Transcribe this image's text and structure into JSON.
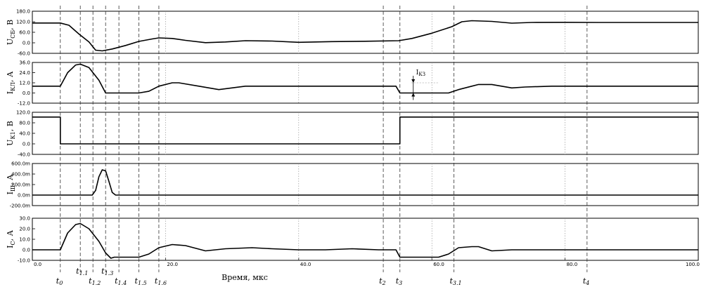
{
  "chart_data": {
    "type": "line",
    "xlabel": "Время, мкс",
    "xlim": [
      0,
      100
    ],
    "x_ticks": [
      {
        "v": 0,
        "label": "0.0"
      },
      {
        "v": 20,
        "label": "20.0"
      },
      {
        "v": 40,
        "label": "40.0"
      },
      {
        "v": 60,
        "label": "60.0"
      },
      {
        "v": 80,
        "label": "80.0"
      },
      {
        "v": 100,
        "label": "100.0"
      }
    ],
    "events": [
      {
        "x": 4.2,
        "base": "t",
        "sub": "0"
      },
      {
        "x": 7.2,
        "base": "t",
        "sub": "1.1"
      },
      {
        "x": 9.1,
        "base": "t",
        "sub": "1.2"
      },
      {
        "x": 11.0,
        "base": "t",
        "sub": "1.3"
      },
      {
        "x": 13.0,
        "base": "t",
        "sub": "1.4"
      },
      {
        "x": 16.0,
        "base": "t",
        "sub": "1.5"
      },
      {
        "x": 19.0,
        "base": "t",
        "sub": "1.6"
      },
      {
        "x": 52.7,
        "base": "t",
        "sub": "2"
      },
      {
        "x": 55.2,
        "base": "t",
        "sub": "3"
      },
      {
        "x": 63.3,
        "base": "t",
        "sub": "3.1"
      },
      {
        "x": 83.3,
        "base": "t",
        "sub": "4"
      }
    ],
    "panels": [
      {
        "ylabel_base": "U",
        "ylabel_sub": "СБ",
        "ylabel_unit": ", В",
        "ylim": [
          -60,
          180
        ],
        "y_ticks": [
          "180.0",
          "120.0",
          "60.0",
          "0.0",
          "-60.0"
        ],
        "y_tick_values": [
          180,
          120,
          60,
          0,
          -60
        ],
        "dashed_y": [],
        "series": [
          {
            "x": [
              0,
              4.2,
              5.5,
              7,
              8.5,
              9.5,
              10.5,
              12,
              14,
              16,
              18,
              19,
              21,
              23,
              26,
              29,
              32,
              36,
              40,
              45,
              50,
              55,
              57,
              60,
              63,
              64.5,
              66,
              69,
              72,
              75,
              80,
              85,
              90,
              100
            ],
            "y": [
              113,
              113,
              100,
              50,
              5,
              -42,
              -46,
              -35,
              -15,
              8,
              22,
              28,
              25,
              14,
              1,
              5,
              12,
              10,
              3,
              7,
              9,
              12,
              25,
              55,
              92,
              120,
              126,
              122,
              112,
              116,
              117,
              116,
              116,
              116
            ]
          }
        ]
      },
      {
        "ylabel_base": "I",
        "ylabel_sub": "КЛ",
        "ylabel_unit": ", А",
        "ylim": [
          -12,
          36
        ],
        "y_ticks": [
          "36.0",
          "24.0",
          "12.0",
          "0.0",
          "-12.0"
        ],
        "y_tick_values": [
          36,
          24,
          12,
          0,
          -12
        ],
        "dashed_y": [],
        "annotation": {
          "text": "I",
          "sub": "КЗ",
          "x": 57.2,
          "y_top": 12,
          "y_bottom": 0
        },
        "series": [
          {
            "x": [
              0,
              4.2,
              5.3,
              6.5,
              7.2,
              8.5,
              10,
              11,
              12.5,
              16,
              17.5,
              19,
              21,
              22,
              25,
              28,
              32,
              35,
              38,
              42,
              46,
              50,
              54.6,
              55.2,
              55.8,
              56.3,
              61,
              62.5,
              64,
              66,
              67,
              69,
              72,
              74,
              78,
              100
            ],
            "y": [
              8,
              8,
              24,
              33,
              34,
              30,
              15,
              0,
              0,
              0,
              2,
              8,
              12,
              12,
              8,
              4,
              8,
              8,
              8,
              8,
              8,
              8,
              8,
              0,
              0,
              0,
              0,
              0,
              4,
              8,
              10,
              10,
              6,
              7,
              8,
              8
            ]
          }
        ]
      },
      {
        "ylabel_base": "U",
        "ylabel_sub": "К1",
        "ylabel_unit": ", В",
        "ylim": [
          -40,
          120
        ],
        "y_ticks": [
          "120.0",
          "80.0",
          "40.0",
          "0.0",
          "-40.0"
        ],
        "y_tick_values": [
          120,
          80,
          40,
          0,
          -40
        ],
        "dashed_y": [],
        "series": [
          {
            "x": [
              0,
              4.2,
              4.2,
              55.2,
              55.2,
              100
            ],
            "y": [
              102,
              102,
              0,
              0,
              102,
              102
            ]
          }
        ]
      },
      {
        "ylabel_base": "I",
        "ylabel_sub": "Ш",
        "ylabel_unit": ", А",
        "ylim": [
          -200,
          600
        ],
        "y_ticks": [
          "600.0m",
          "400.0m",
          "200.0m",
          "0.0m",
          "-200.0m"
        ],
        "y_tick_values": [
          600,
          400,
          200,
          0,
          -200
        ],
        "dashed_y": [],
        "series": [
          {
            "x": [
              0,
              9.0,
              9.5,
              10.0,
              10.5,
              11.0,
              11.5,
              12.0,
              12.5,
              100
            ],
            "y": [
              0,
              0,
              90,
              350,
              480,
              460,
              260,
              50,
              0,
              0
            ]
          }
        ]
      },
      {
        "ylabel_base": "I",
        "ylabel_sub": "C",
        "ylabel_unit": ", А",
        "ylim": [
          -10,
          30
        ],
        "y_ticks": [
          "30.0",
          "20.0",
          "10.0",
          "0.0",
          "-10.0"
        ],
        "y_tick_values": [
          30,
          20,
          10,
          0,
          -10
        ],
        "dashed_y": [],
        "series": [
          {
            "x": [
              0,
              4.2,
              5.3,
              6.5,
              7.2,
              8.5,
              10,
              11,
              11.8,
              12.3,
              16,
              17.5,
              19,
              21,
              23,
              26,
              29,
              33,
              36,
              40,
              44,
              48,
              52,
              54.6,
              55.2,
              55.8,
              56.3,
              61,
              62.5,
              64,
              66,
              67,
              69,
              72,
              74,
              78,
              100
            ],
            "y": [
              0,
              0,
              16,
              24,
              25,
              20,
              8,
              -3,
              -8,
              -7,
              -7,
              -4,
              2,
              5,
              4,
              -1,
              1,
              2,
              1,
              0,
              0,
              1,
              0,
              0,
              -7,
              -7,
              -7,
              -7,
              -4,
              2,
              3,
              3,
              -1,
              0,
              0,
              0,
              0
            ]
          }
        ]
      }
    ]
  }
}
